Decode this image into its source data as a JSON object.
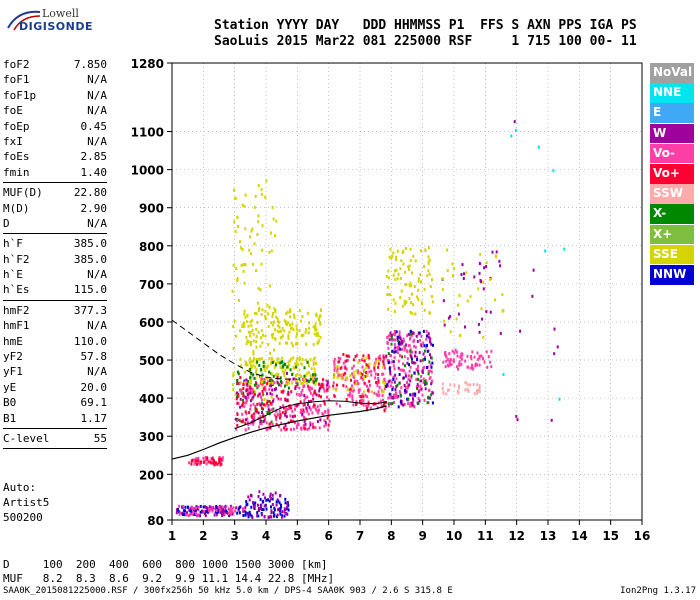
{
  "logo": {
    "line1": "Lowell",
    "line2": "DIGISONDE"
  },
  "header": {
    "line1": "Station YYYY DAY   DDD HHMMSS P1  FFS S AXN PPS IGA PS",
    "line2": "SaoLuis 2015 Mar22 081 225000 RSF     1 715 100 00- 11"
  },
  "params": [
    {
      "group": [
        {
          "name": "foF2",
          "value": "7.850"
        },
        {
          "name": "foF1",
          "value": "N/A"
        },
        {
          "name": "foF1p",
          "value": "N/A"
        },
        {
          "name": "foE",
          "value": "N/A"
        },
        {
          "name": "foEp",
          "value": "0.45"
        },
        {
          "name": "fxI",
          "value": "N/A"
        },
        {
          "name": "foEs",
          "value": "2.85"
        },
        {
          "name": "fmin",
          "value": "1.40"
        }
      ]
    },
    {
      "group": [
        {
          "name": "MUF(D)",
          "value": "22.80"
        },
        {
          "name": "M(D)",
          "value": "2.90"
        },
        {
          "name": "D",
          "value": "N/A"
        }
      ]
    },
    {
      "group": [
        {
          "name": "h`F",
          "value": "385.0"
        },
        {
          "name": "h`F2",
          "value": "385.0"
        },
        {
          "name": "h`E",
          "value": "N/A"
        },
        {
          "name": "h`Es",
          "value": "115.0"
        }
      ]
    },
    {
      "group": [
        {
          "name": "hmF2",
          "value": "377.3"
        },
        {
          "name": "hmF1",
          "value": "N/A"
        },
        {
          "name": "hmE",
          "value": "110.0"
        },
        {
          "name": "yF2",
          "value": "57.8"
        },
        {
          "name": "yF1",
          "value": "N/A"
        },
        {
          "name": "yE",
          "value": "20.0"
        },
        {
          "name": "B0",
          "value": "69.1"
        },
        {
          "name": "B1",
          "value": "1.17"
        }
      ]
    },
    {
      "group": [
        {
          "name": "C-level",
          "value": "55"
        }
      ]
    }
  ],
  "auto": {
    "label": "Auto:",
    "artist": "Artist5",
    "version": "500200"
  },
  "legend": [
    {
      "label": "NoVal",
      "color": "#a0a0a0"
    },
    {
      "label": "NNE",
      "color": "#00e5ee"
    },
    {
      "label": "E",
      "color": "#3fa9f5"
    },
    {
      "label": "W",
      "color": "#a0009e"
    },
    {
      "label": "Vo-",
      "color": "#ff3fa8"
    },
    {
      "label": "Vo+",
      "color": "#ff0033"
    },
    {
      "label": "SSW",
      "color": "#ffaaaa"
    },
    {
      "label": "X-",
      "color": "#008800"
    },
    {
      "label": "X+",
      "color": "#7fbf3f"
    },
    {
      "label": "SSE",
      "color": "#d4d400"
    },
    {
      "label": "NNW",
      "color": "#0000d0"
    }
  ],
  "d_table": {
    "line1": "D     100  200  400  600  800 1000 1500 3000 [km]",
    "line2": "MUF   8.2  8.3  8.6  9.2  9.9 11.1 14.4 22.8 [MHz]"
  },
  "footer": "SAA0K_2015081225000.RSF / 300fx256h 50 kHz 5.0 km / DPS-4 SAA0K 903 / 2.6 S 315.8 E",
  "version": "Ion2Png 1.3.17",
  "chart_data": {
    "type": "scatter",
    "xlim": [
      1,
      16
    ],
    "ylim": [
      80,
      1280
    ],
    "x_ticks": [
      1,
      2,
      3,
      4,
      5,
      6,
      7,
      8,
      9,
      10,
      11,
      12,
      13,
      14,
      15,
      16
    ],
    "y_ticks": [
      80,
      200,
      300,
      400,
      500,
      600,
      700,
      800,
      900,
      1000,
      1100,
      1280
    ],
    "grid": true,
    "legend_placement": "right",
    "profile_line": [
      [
        1.0,
        240
      ],
      [
        1.5,
        250
      ],
      [
        2.0,
        265
      ],
      [
        2.5,
        282
      ],
      [
        3.0,
        297
      ],
      [
        3.5,
        310
      ],
      [
        4.0,
        322
      ],
      [
        5.0,
        340
      ],
      [
        6.0,
        355
      ],
      [
        7.0,
        365
      ],
      [
        7.5,
        372
      ],
      [
        7.85,
        380
      ]
    ],
    "trace_line": [
      [
        3.0,
        320
      ],
      [
        3.5,
        335
      ],
      [
        4.0,
        355
      ],
      [
        4.5,
        375
      ],
      [
        5.0,
        385
      ],
      [
        5.5,
        390
      ],
      [
        6.0,
        393
      ],
      [
        6.5,
        392
      ],
      [
        7.0,
        387
      ],
      [
        7.5,
        385
      ],
      [
        7.85,
        390
      ]
    ],
    "dashed_line": [
      [
        1.0,
        605
      ],
      [
        1.5,
        575
      ],
      [
        2.0,
        545
      ],
      [
        2.5,
        515
      ],
      [
        3.0,
        490
      ],
      [
        3.5,
        468
      ],
      [
        4.0,
        455
      ],
      [
        4.5,
        450
      ],
      [
        5.0,
        450
      ]
    ],
    "point_clusters": [
      {
        "x": [
          1.1,
          3.3
        ],
        "y": [
          95,
          120
        ],
        "color": "#a0009e",
        "n": 70
      },
      {
        "x": [
          1.1,
          3.3
        ],
        "y": [
          95,
          120
        ],
        "color": "#0000d0",
        "n": 50
      },
      {
        "x": [
          1.1,
          3.3
        ],
        "y": [
          95,
          120
        ],
        "color": "#ff3fa8",
        "n": 40
      },
      {
        "x": [
          3.3,
          4.7
        ],
        "y": [
          90,
          140
        ],
        "color": "#0000d0",
        "n": 60
      },
      {
        "x": [
          3.3,
          4.7
        ],
        "y": [
          90,
          160
        ],
        "color": "#a0009e",
        "n": 50
      },
      {
        "x": [
          1.5,
          2.6
        ],
        "y": [
          228,
          248
        ],
        "color": "#ff3fa8",
        "n": 45
      },
      {
        "x": [
          1.5,
          2.6
        ],
        "y": [
          228,
          248
        ],
        "color": "#ff0033",
        "n": 25
      },
      {
        "x": [
          2.9,
          4.3
        ],
        "y": [
          400,
          1000
        ],
        "color": "#d4d400",
        "n": 110
      },
      {
        "x": [
          3.2,
          5.8
        ],
        "y": [
          540,
          640
        ],
        "color": "#d4d400",
        "n": 140
      },
      {
        "x": [
          3.0,
          4.3
        ],
        "y": [
          340,
          480
        ],
        "color": "#008800",
        "n": 45
      },
      {
        "x": [
          3.0,
          6.0
        ],
        "y": [
          320,
          460
        ],
        "color": "#ff3fa8",
        "n": 230
      },
      {
        "x": [
          3.0,
          6.0
        ],
        "y": [
          320,
          460
        ],
        "color": "#ff0033",
        "n": 110
      },
      {
        "x": [
          3.0,
          6.0
        ],
        "y": [
          330,
          470
        ],
        "color": "#a0009e",
        "n": 70
      },
      {
        "x": [
          3.3,
          5.6
        ],
        "y": [
          440,
          510
        ],
        "color": "#d4d400",
        "n": 130
      },
      {
        "x": [
          3.3,
          5.6
        ],
        "y": [
          430,
          500
        ],
        "color": "#008800",
        "n": 45
      },
      {
        "x": [
          6.1,
          7.8
        ],
        "y": [
          370,
          520
        ],
        "color": "#ff3fa8",
        "n": 130
      },
      {
        "x": [
          6.1,
          7.8
        ],
        "y": [
          370,
          520
        ],
        "color": "#ff0033",
        "n": 60
      },
      {
        "x": [
          6.1,
          7.8
        ],
        "y": [
          420,
          510
        ],
        "color": "#d4d400",
        "n": 40
      },
      {
        "x": [
          7.8,
          9.3
        ],
        "y": [
          380,
          580
        ],
        "color": "#ff3fa8",
        "n": 170
      },
      {
        "x": [
          7.8,
          9.3
        ],
        "y": [
          380,
          580
        ],
        "color": "#a0009e",
        "n": 90
      },
      {
        "x": [
          7.8,
          9.3
        ],
        "y": [
          380,
          580
        ],
        "color": "#0000d0",
        "n": 40
      },
      {
        "x": [
          7.8,
          9.3
        ],
        "y": [
          380,
          580
        ],
        "color": "#008800",
        "n": 30
      },
      {
        "x": [
          7.8,
          9.3
        ],
        "y": [
          620,
          800
        ],
        "color": "#d4d400",
        "n": 90
      },
      {
        "x": [
          9.6,
          11.2
        ],
        "y": [
          480,
          530
        ],
        "color": "#ff3fa8",
        "n": 70
      },
      {
        "x": [
          9.6,
          10.8
        ],
        "y": [
          415,
          445
        ],
        "color": "#ffaaaa",
        "n": 30
      },
      {
        "x": [
          9.6,
          11.6
        ],
        "y": [
          560,
          800
        ],
        "color": "#a0009e",
        "n": 30
      },
      {
        "x": [
          9.6,
          11.6
        ],
        "y": [
          560,
          800
        ],
        "color": "#d4d400",
        "n": 30
      },
      {
        "x": [
          11.5,
          13.5
        ],
        "y": [
          320,
          1160
        ],
        "color": "#00e5ee",
        "n": 8
      },
      {
        "x": [
          11.5,
          13.5
        ],
        "y": [
          320,
          1160
        ],
        "color": "#a0009e",
        "n": 10
      }
    ]
  }
}
